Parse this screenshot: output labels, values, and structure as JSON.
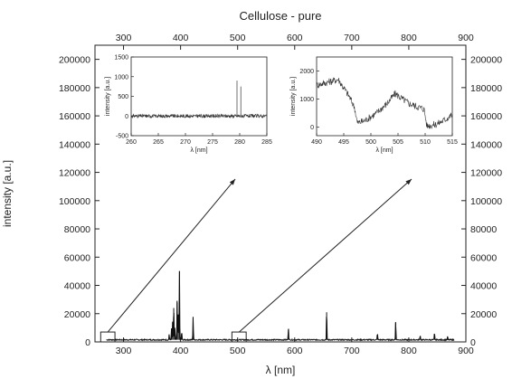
{
  "chart_data": {
    "type": "line",
    "title": "Cellulose - pure",
    "xlabel": "λ [nm]",
    "ylabel": "intensity [a.u.]",
    "xlim": [
      250,
      900
    ],
    "ylim": [
      0,
      210000
    ],
    "xticks": [
      300,
      400,
      500,
      600,
      700,
      800,
      900
    ],
    "yticks": [
      0,
      20000,
      40000,
      60000,
      80000,
      100000,
      120000,
      140000,
      160000,
      180000,
      200000
    ],
    "top_ticks": [
      300,
      400,
      500,
      600,
      700,
      800,
      900
    ],
    "right_ticks": [
      0,
      20000,
      40000,
      60000,
      80000,
      100000,
      120000,
      140000,
      160000,
      180000,
      200000
    ],
    "series": [
      {
        "color": "#111111",
        "baseline": 1500,
        "peaks": [
          {
            "x": 380,
            "y": 4000
          },
          {
            "x": 384,
            "y": 8000
          },
          {
            "x": 386,
            "y": 14000
          },
          {
            "x": 388,
            "y": 24000
          },
          {
            "x": 390,
            "y": 10000
          },
          {
            "x": 394,
            "y": 28000
          },
          {
            "x": 396,
            "y": 18000
          },
          {
            "x": 398,
            "y": 50000
          },
          {
            "x": 402,
            "y": 6000
          },
          {
            "x": 422,
            "y": 17000
          },
          {
            "x": 589,
            "y": 9000
          },
          {
            "x": 656,
            "y": 21000
          },
          {
            "x": 745,
            "y": 5000
          },
          {
            "x": 777,
            "y": 14000
          },
          {
            "x": 820,
            "y": 3500
          },
          {
            "x": 845,
            "y": 5000
          },
          {
            "x": 868,
            "y": 2500
          }
        ]
      }
    ],
    "highlight_boxes": [
      {
        "x_range": [
          260,
          285
        ],
        "y_range": [
          0,
          7000
        ]
      },
      {
        "x_range": [
          490,
          515
        ],
        "y_range": [
          0,
          7000
        ]
      }
    ],
    "insets": [
      {
        "xlabel": "λ [nm]",
        "ylabel": "intensity [a.u.]",
        "xlim": [
          260,
          285
        ],
        "ylim": [
          -500,
          1500
        ],
        "xticks": [
          260,
          265,
          270,
          275,
          280,
          285
        ],
        "yticks": [
          -500,
          0,
          500,
          1000,
          1500
        ],
        "baseline": 0,
        "peaks": [
          {
            "x": 279.5,
            "y": 900
          },
          {
            "x": 280.2,
            "y": 750
          }
        ]
      },
      {
        "xlabel": "λ [nm]",
        "ylabel": "intensity [a.u.]",
        "xlim": [
          490,
          515
        ],
        "ylim": [
          -300,
          2500
        ],
        "xticks": [
          490,
          495,
          500,
          505,
          510,
          515
        ],
        "yticks": [
          0,
          1000,
          2000
        ],
        "profile": [
          {
            "x": 490,
            "y": 1500
          },
          {
            "x": 492,
            "y": 1600
          },
          {
            "x": 494,
            "y": 1700
          },
          {
            "x": 495,
            "y": 1400
          },
          {
            "x": 496,
            "y": 1100
          },
          {
            "x": 497,
            "y": 700
          },
          {
            "x": 497.5,
            "y": 150
          },
          {
            "x": 499,
            "y": 250
          },
          {
            "x": 501,
            "y": 500
          },
          {
            "x": 503,
            "y": 850
          },
          {
            "x": 504.5,
            "y": 1200
          },
          {
            "x": 505.5,
            "y": 1050
          },
          {
            "x": 507,
            "y": 850
          },
          {
            "x": 509,
            "y": 700
          },
          {
            "x": 509.8,
            "y": 650
          },
          {
            "x": 510.3,
            "y": 50
          },
          {
            "x": 512,
            "y": 100
          },
          {
            "x": 513.5,
            "y": 250
          },
          {
            "x": 515,
            "y": 450
          }
        ]
      }
    ]
  }
}
